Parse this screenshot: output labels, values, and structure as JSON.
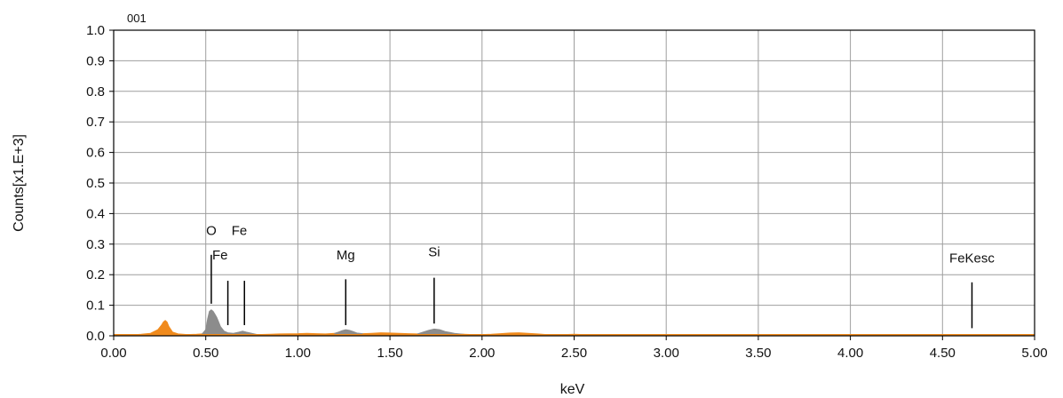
{
  "chart_data": {
    "type": "area",
    "spectrum_id": "001",
    "xlabel": "keV",
    "ylabel": "Counts[x1.E+3]",
    "xlim": [
      0,
      5
    ],
    "ylim": [
      0,
      1
    ],
    "grid": true,
    "x_ticks": [
      "0.00",
      "0.50",
      "1.00",
      "1.50",
      "2.00",
      "2.50",
      "3.00",
      "3.50",
      "4.00",
      "4.50",
      "5.00"
    ],
    "y_ticks": [
      "0.0",
      "0.1",
      "0.2",
      "0.3",
      "0.4",
      "0.5",
      "0.6",
      "0.7",
      "0.8",
      "0.9",
      "1.0"
    ],
    "colors": {
      "background_spectrum": "#f08a1c",
      "peak_regions": "#8c8c8c",
      "grid": "#9e9e9e",
      "axes": "#000000"
    },
    "series": [
      {
        "role": "background_spectrum",
        "x": [
          0.0,
          0.05,
          0.1,
          0.15,
          0.2,
          0.24,
          0.26,
          0.27,
          0.28,
          0.29,
          0.3,
          0.32,
          0.35,
          0.4,
          0.45,
          0.48,
          0.78,
          0.85,
          0.9,
          1.0,
          1.05,
          1.1,
          1.15,
          1.2,
          1.35,
          1.4,
          1.45,
          1.5,
          1.55,
          1.6,
          1.65,
          1.9,
          1.95,
          2.0,
          2.05,
          2.1,
          2.15,
          2.2,
          2.25,
          2.3,
          2.35,
          2.4,
          2.45,
          2.5,
          2.6,
          2.7,
          3.0,
          3.5,
          4.0,
          4.5,
          5.0
        ],
        "y": [
          0.0,
          0.002,
          0.003,
          0.005,
          0.008,
          0.02,
          0.035,
          0.045,
          0.05,
          0.045,
          0.03,
          0.012,
          0.006,
          0.004,
          0.005,
          0.006,
          0.004,
          0.005,
          0.006,
          0.007,
          0.008,
          0.007,
          0.006,
          0.008,
          0.007,
          0.008,
          0.01,
          0.009,
          0.008,
          0.007,
          0.006,
          0.005,
          0.004,
          0.004,
          0.005,
          0.007,
          0.009,
          0.01,
          0.008,
          0.006,
          0.004,
          0.003,
          0.004,
          0.005,
          0.003,
          0.002,
          0.002,
          0.001,
          0.001,
          0.001,
          0.0
        ]
      },
      {
        "role": "peak_regions",
        "x": [
          0.48,
          0.5,
          0.51,
          0.52,
          0.53,
          0.54,
          0.55,
          0.56,
          0.57,
          0.58,
          0.6,
          0.62,
          0.65,
          0.68,
          0.7,
          0.72,
          0.75,
          0.78
        ],
        "y": [
          0.006,
          0.02,
          0.055,
          0.08,
          0.085,
          0.08,
          0.07,
          0.06,
          0.045,
          0.03,
          0.015,
          0.01,
          0.008,
          0.012,
          0.015,
          0.012,
          0.008,
          0.004
        ]
      },
      {
        "role": "peak_regions",
        "x": [
          1.2,
          1.22,
          1.24,
          1.26,
          1.28,
          1.3,
          1.32,
          1.35
        ],
        "y": [
          0.008,
          0.012,
          0.017,
          0.02,
          0.018,
          0.014,
          0.009,
          0.007
        ]
      },
      {
        "role": "peak_regions",
        "x": [
          1.65,
          1.68,
          1.71,
          1.74,
          1.77,
          1.8,
          1.85,
          1.9
        ],
        "y": [
          0.006,
          0.012,
          0.018,
          0.022,
          0.02,
          0.014,
          0.008,
          0.005
        ]
      }
    ],
    "peak_markers": [
      {
        "label": "O",
        "x": 0.53,
        "y_top": 0.265,
        "y_bottom": 0.105
      },
      {
        "label": "Fe",
        "x": 0.62,
        "y_top": 0.18,
        "y_bottom": 0.035
      },
      {
        "label": "Fe",
        "x": 0.71,
        "y_top": 0.18,
        "y_bottom": 0.035
      },
      {
        "label": "Mg",
        "x": 1.26,
        "y_top": 0.185,
        "y_bottom": 0.035
      },
      {
        "label": "Si",
        "x": 1.74,
        "y_top": 0.19,
        "y_bottom": 0.04
      },
      {
        "label": "FeKesc",
        "x": 4.66,
        "y_top": 0.175,
        "y_bottom": 0.025
      }
    ],
    "peak_label_text": [
      {
        "text": "O",
        "x": 0.53,
        "y": 0.33,
        "anchor": "middle"
      },
      {
        "text": "Fe",
        "x": 0.64,
        "y": 0.33,
        "anchor": "start"
      },
      {
        "text": "Fe",
        "x": 0.535,
        "y": 0.25,
        "anchor": "start"
      },
      {
        "text": "Mg",
        "x": 1.26,
        "y": 0.25,
        "anchor": "middle"
      },
      {
        "text": "Si",
        "x": 1.74,
        "y": 0.26,
        "anchor": "middle"
      },
      {
        "text": "FeKesc",
        "x": 4.66,
        "y": 0.24,
        "anchor": "middle"
      }
    ]
  }
}
